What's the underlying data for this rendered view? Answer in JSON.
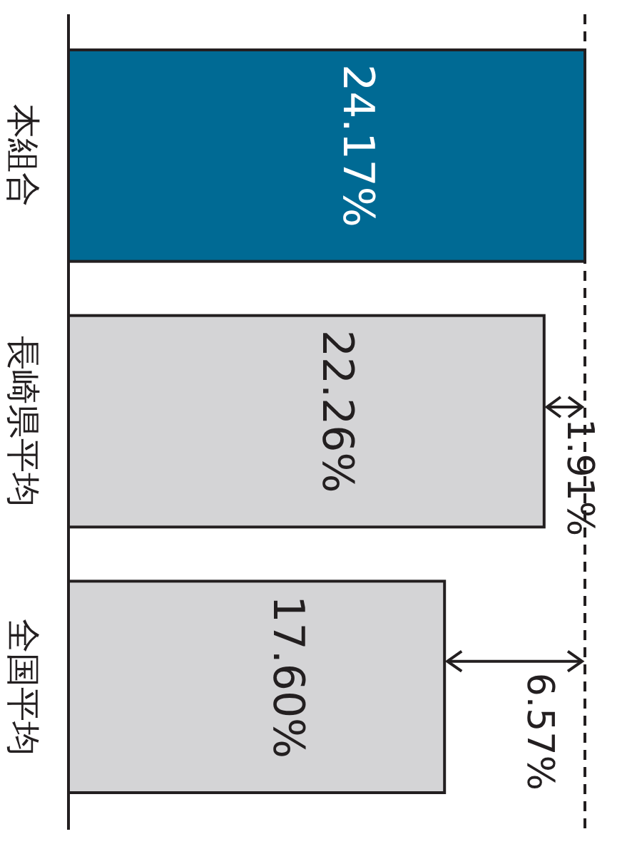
{
  "chart_data": {
    "type": "bar",
    "orientation": "horizontal",
    "categories": [
      "本組合",
      "長崎県平均",
      "全国平均"
    ],
    "values": [
      24.17,
      22.26,
      17.6
    ],
    "colors": [
      "#006a94",
      "#d4d4d6",
      "#d4d4d6"
    ],
    "value_labels": [
      "24.17%",
      "22.26%",
      "17.60%"
    ],
    "ref_lines": [
      {
        "axis": "x",
        "value": 24.17,
        "line_style": "dashed",
        "color": "#231f20"
      }
    ],
    "annotations": [
      "1.91%",
      "6.57%"
    ]
  }
}
